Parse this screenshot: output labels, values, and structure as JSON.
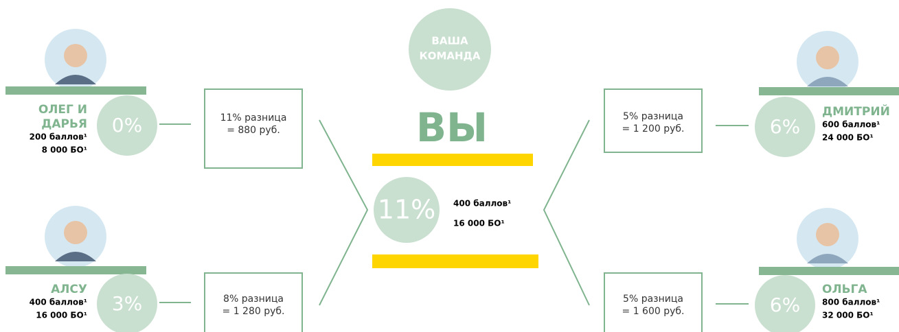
{
  "center": {
    "team_label": [
      "ВАША",
      "КОМАНДА"
    ],
    "you": "ВЫ",
    "percent": "11%",
    "points": "400 баллов¹",
    "bo": "16 000 БО¹"
  },
  "members": [
    {
      "name": [
        "ОЛЕГ И",
        "ДАРЬЯ"
      ],
      "percent": "0%",
      "points": "200 баллов¹",
      "bo": "8 000 БО¹",
      "difference": [
        "11% разница",
        "= 880 руб."
      ]
    },
    {
      "name": [
        "АЛСУ"
      ],
      "percent": "3%",
      "points": "400 баллов¹",
      "bo": "16 000 БО¹",
      "difference": [
        "8% разница",
        "= 1 280 руб."
      ]
    },
    {
      "name": [
        "ДМИТРИЙ"
      ],
      "percent": "6%",
      "points": "600 баллов¹",
      "bo": "24 000 БО¹",
      "difference": [
        "5% разница",
        "= 1 200 руб."
      ]
    },
    {
      "name": [
        "ОЛЬГА"
      ],
      "percent": "6%",
      "points": "800 баллов¹",
      "bo": "32 000 БО¹",
      "difference": [
        "5% разница",
        "= 1 600 руб."
      ]
    }
  ]
}
